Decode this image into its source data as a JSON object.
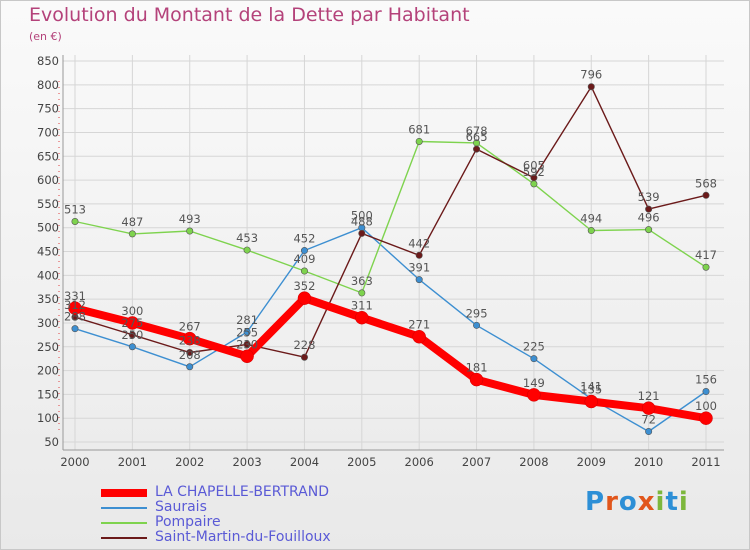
{
  "header": {
    "title": "Evolution du Montant de la Dette par Habitant",
    "unit": "(en €)"
  },
  "logo": {
    "text": "Proxiti",
    "colors": [
      "#2d8fd6",
      "#e1561b",
      "#2d8fd6",
      "#e1561b",
      "#7db73c",
      "#2d8fd6",
      "#7db73c"
    ]
  },
  "chart_data": {
    "type": "line",
    "title": "Evolution du Montant de la Dette par Habitant",
    "ylabel": "(en €)",
    "xlabel": "",
    "x": [
      "2000",
      "2001",
      "2002",
      "2003",
      "2004",
      "2005",
      "2006",
      "2007",
      "2008",
      "2009",
      "2010",
      "2011"
    ],
    "ylim": [
      50,
      850
    ],
    "yticks": [
      50,
      100,
      150,
      200,
      250,
      300,
      350,
      400,
      450,
      500,
      550,
      600,
      650,
      700,
      750,
      800,
      850
    ],
    "grid": true,
    "legend": "bottom-left",
    "series": [
      {
        "name": "LA CHAPELLE-BERTRAND",
        "color": "#ff0000",
        "values": [
          331,
          300,
          267,
          230,
          352,
          311,
          271,
          181,
          149,
          135,
          121,
          100
        ]
      },
      {
        "name": "Saurais",
        "color": "#3d8fd1",
        "values": [
          288,
          250,
          208,
          281,
          452,
          500,
          391,
          295,
          225,
          141,
          72,
          156
        ]
      },
      {
        "name": "Pompaire",
        "color": "#7ed34e",
        "values": [
          513,
          487,
          493,
          453,
          409,
          363,
          681,
          678,
          592,
          494,
          496,
          417
        ]
      },
      {
        "name": "Saint-Martin-du-Fouilloux",
        "color": "#6b1a1a",
        "values": [
          312,
          275,
          238,
          255,
          228,
          488,
          442,
          665,
          605,
          796,
          539,
          568
        ]
      }
    ]
  }
}
